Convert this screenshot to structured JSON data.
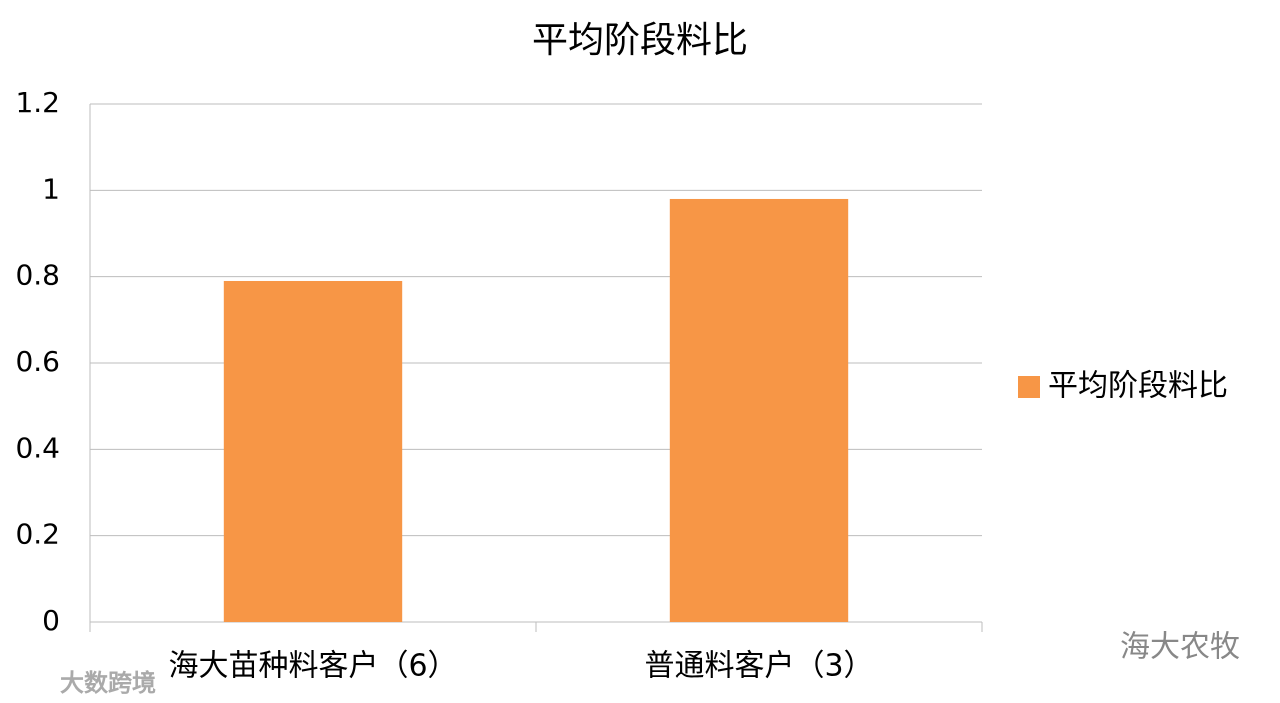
{
  "chart_data": {
    "type": "bar",
    "title": "平均阶段料比",
    "categories": [
      "海大苗种料客户（6）",
      "普通料客户（3）"
    ],
    "series": [
      {
        "name": "平均阶段料比",
        "color": "#f79646",
        "values": [
          0.79,
          0.98
        ]
      }
    ],
    "ylim": [
      0,
      1.2
    ],
    "yticks": [
      0,
      0.2,
      0.4,
      0.6,
      0.8,
      1,
      1.2
    ],
    "grid": true,
    "legend": "right"
  },
  "watermarks": [
    "海大农牧",
    "大数跨境"
  ]
}
